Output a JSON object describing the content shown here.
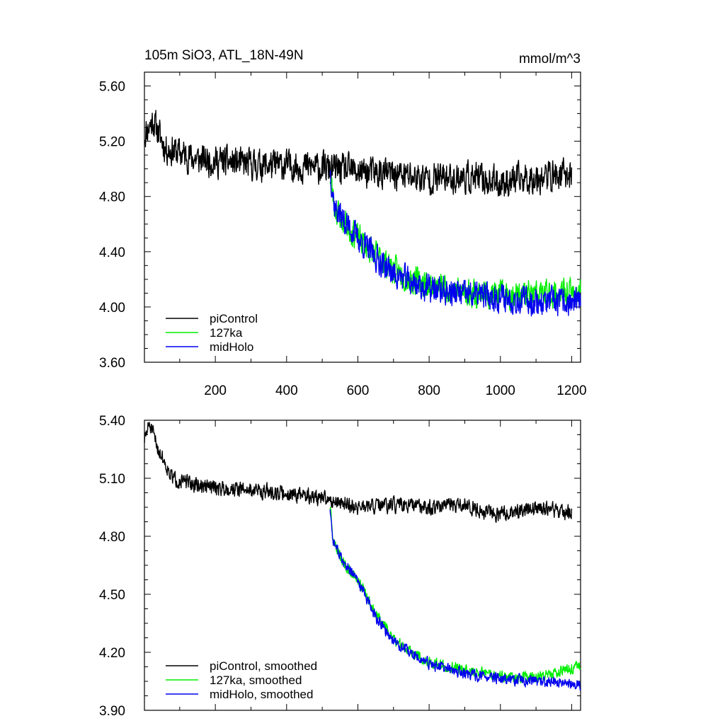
{
  "chart_data": [
    {
      "type": "line",
      "title": "105m SiO3, ATL_18N-49N",
      "units": "mmol/m^3",
      "xlim": [
        1,
        1225
      ],
      "ylim": [
        3.6,
        5.7
      ],
      "xticks": [
        200,
        400,
        600,
        800,
        1000,
        1200
      ],
      "xtick_labels": [
        "200",
        "400",
        "600",
        "800",
        "1000",
        "1200"
      ],
      "yticks": [
        3.6,
        4.0,
        4.4,
        4.8,
        5.2,
        5.6
      ],
      "ytick_labels": [
        "3.60",
        "4.00",
        "4.40",
        "4.80",
        "5.20",
        "5.60"
      ],
      "legend_position": "bottom-left",
      "series": [
        {
          "name": "piControl",
          "color": "#000000",
          "x_start": 1,
          "x_end": 1200,
          "keypoints": [
            [
              1,
              5.25
            ],
            [
              25,
              5.35
            ],
            [
              60,
              5.15
            ],
            [
              150,
              5.07
            ],
            [
              300,
              5.03
            ],
            [
              450,
              5.02
            ],
            [
              520,
              5.0
            ],
            [
              600,
              4.98
            ],
            [
              700,
              4.96
            ],
            [
              800,
              4.93
            ],
            [
              900,
              4.94
            ],
            [
              1000,
              4.9
            ],
            [
              1100,
              4.94
            ],
            [
              1200,
              4.96
            ]
          ],
          "noise": 0.1,
          "seed": 11
        },
        {
          "name": "127ka",
          "color": "#00ee00",
          "x_start": 522,
          "x_end": 1225,
          "keypoints": [
            [
              522,
              4.95
            ],
            [
              535,
              4.72
            ],
            [
              560,
              4.62
            ],
            [
              600,
              4.5
            ],
            [
              650,
              4.38
            ],
            [
              700,
              4.27
            ],
            [
              750,
              4.2
            ],
            [
              800,
              4.16
            ],
            [
              900,
              4.11
            ],
            [
              1000,
              4.09
            ],
            [
              1100,
              4.09
            ],
            [
              1225,
              4.1
            ]
          ],
          "noise": 0.09,
          "seed": 23
        },
        {
          "name": "midHolo",
          "color": "#0000ee",
          "x_start": 522,
          "x_end": 1225,
          "keypoints": [
            [
              522,
              5.0
            ],
            [
              535,
              4.72
            ],
            [
              560,
              4.63
            ],
            [
              600,
              4.5
            ],
            [
              650,
              4.36
            ],
            [
              700,
              4.24
            ],
            [
              750,
              4.18
            ],
            [
              800,
              4.13
            ],
            [
              900,
              4.09
            ],
            [
              1000,
              4.07
            ],
            [
              1100,
              4.04
            ],
            [
              1225,
              4.03
            ]
          ],
          "noise": 0.09,
          "seed": 37
        }
      ]
    },
    {
      "type": "line",
      "title": "",
      "xlim": [
        1,
        1225
      ],
      "ylim": [
        3.9,
        5.4
      ],
      "xticks": [
        200,
        400,
        600,
        800,
        1000,
        1200
      ],
      "xtick_labels": [],
      "yticks": [
        3.9,
        4.2,
        4.5,
        4.8,
        5.1,
        5.4
      ],
      "ytick_labels": [
        "3.90",
        "4.20",
        "4.50",
        "4.80",
        "5.10",
        "5.40"
      ],
      "legend_position": "bottom-left",
      "series": [
        {
          "name": "piControl, smoothed",
          "color": "#000000",
          "x_start": 1,
          "x_end": 1200,
          "keypoints": [
            [
              1,
              5.3
            ],
            [
              15,
              5.38
            ],
            [
              40,
              5.25
            ],
            [
              80,
              5.1
            ],
            [
              150,
              5.06
            ],
            [
              300,
              5.04
            ],
            [
              450,
              5.01
            ],
            [
              520,
              4.99
            ],
            [
              600,
              4.95
            ],
            [
              700,
              4.96
            ],
            [
              800,
              4.95
            ],
            [
              900,
              4.96
            ],
            [
              1000,
              4.91
            ],
            [
              1100,
              4.95
            ],
            [
              1200,
              4.92
            ]
          ],
          "noise": 0.035,
          "seed": 51
        },
        {
          "name": "127ka, smoothed",
          "color": "#00ee00",
          "x_start": 522,
          "x_end": 1225,
          "keypoints": [
            [
              522,
              4.95
            ],
            [
              530,
              4.78
            ],
            [
              560,
              4.66
            ],
            [
              600,
              4.58
            ],
            [
              650,
              4.4
            ],
            [
              700,
              4.27
            ],
            [
              750,
              4.2
            ],
            [
              800,
              4.15
            ],
            [
              900,
              4.11
            ],
            [
              1000,
              4.08
            ],
            [
              1100,
              4.07
            ],
            [
              1225,
              4.13
            ]
          ],
          "noise": 0.025,
          "seed": 63
        },
        {
          "name": "midHolo, smoothed",
          "color": "#0000ee",
          "x_start": 522,
          "x_end": 1225,
          "keypoints": [
            [
              522,
              4.95
            ],
            [
              530,
              4.78
            ],
            [
              560,
              4.66
            ],
            [
              600,
              4.57
            ],
            [
              650,
              4.38
            ],
            [
              700,
              4.26
            ],
            [
              750,
              4.19
            ],
            [
              800,
              4.14
            ],
            [
              900,
              4.09
            ],
            [
              1000,
              4.06
            ],
            [
              1100,
              4.05
            ],
            [
              1225,
              4.03
            ]
          ],
          "noise": 0.025,
          "seed": 77
        }
      ]
    }
  ]
}
